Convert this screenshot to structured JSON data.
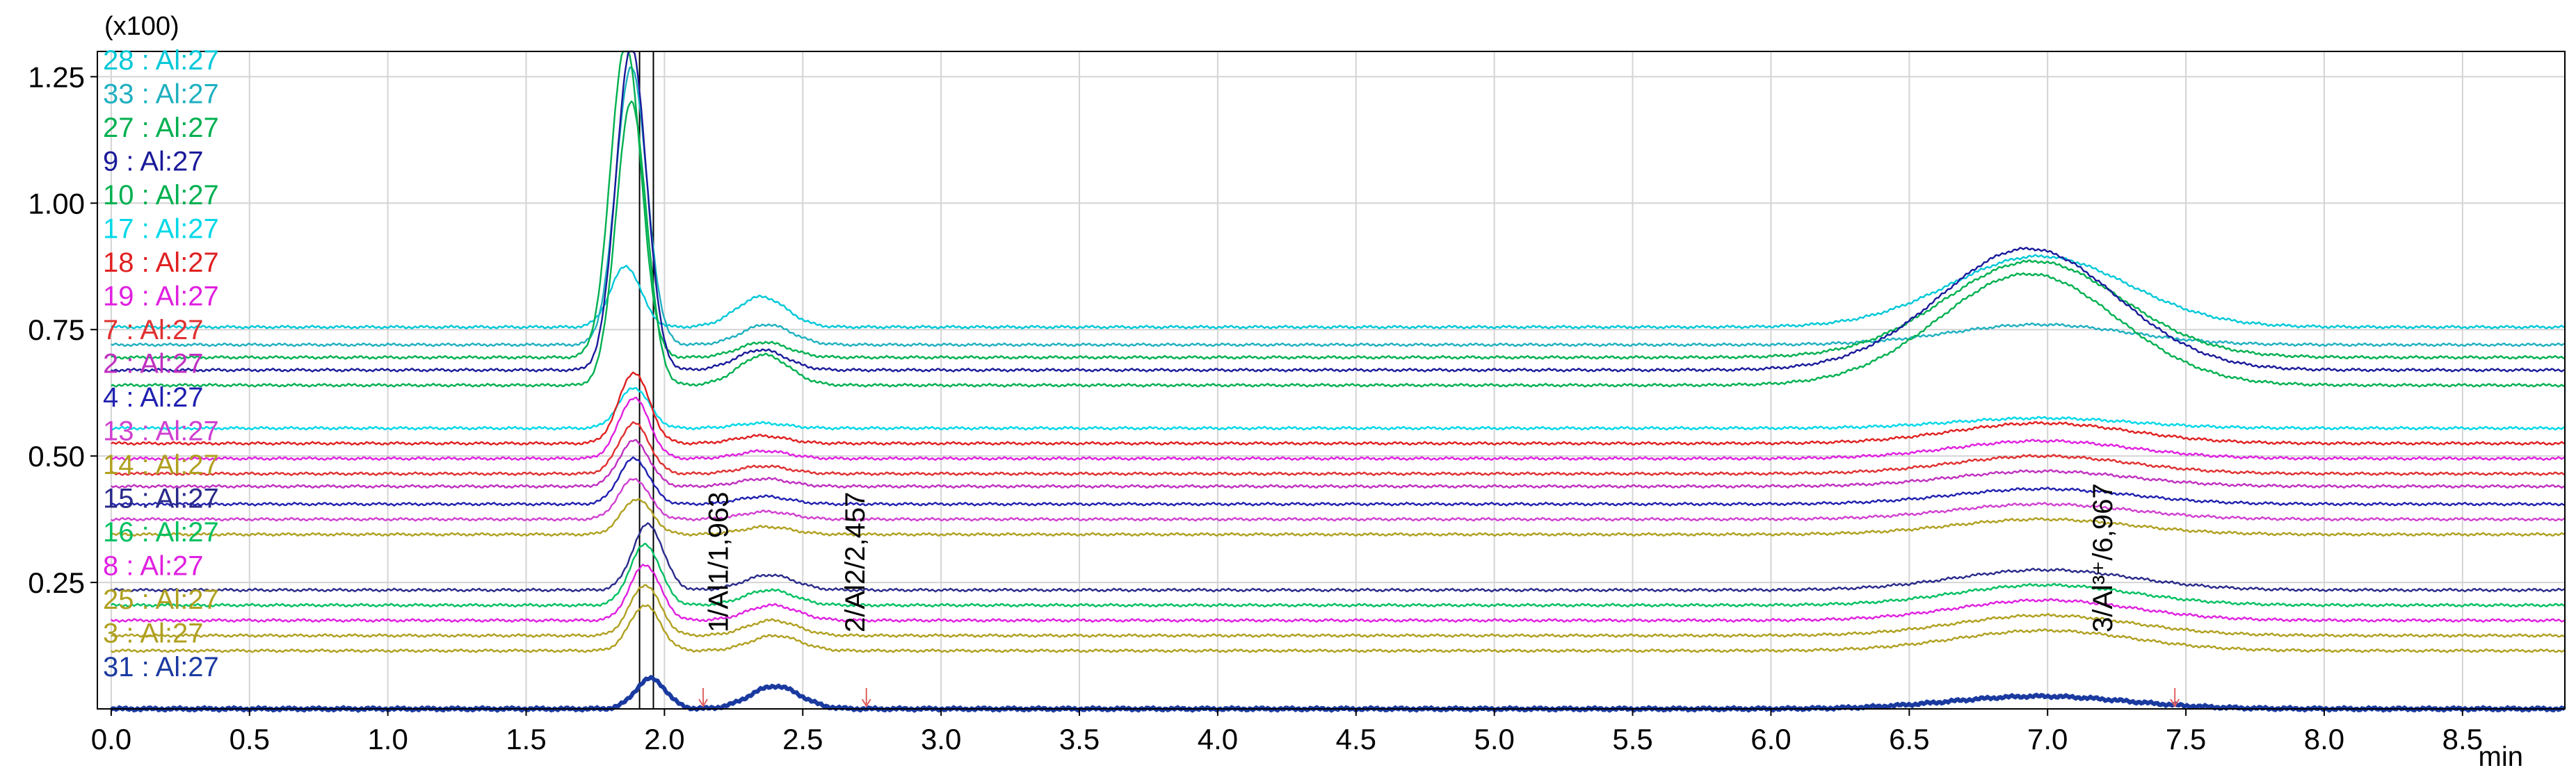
{
  "chart_data": {
    "type": "line",
    "title": "",
    "y_multiplier": "(x100)",
    "xlabel": "min",
    "ylabel": "",
    "xlim": [
      -0.05,
      8.87
    ],
    "ylim": [
      0.0,
      1.3
    ],
    "x_ticks": [
      0.0,
      0.5,
      1.0,
      1.5,
      2.0,
      2.5,
      3.0,
      3.5,
      4.0,
      4.5,
      5.0,
      5.5,
      6.0,
      6.5,
      7.0,
      7.5,
      8.0,
      8.5
    ],
    "x_tick_labels": [
      "0.0",
      "0.5",
      "1.0",
      "1.5",
      "2.0",
      "2.5",
      "3.0",
      "3.5",
      "4.0",
      "4.5",
      "5.0",
      "5.5",
      "6.0",
      "6.5",
      "7.0",
      "7.5",
      "8.0",
      "8.5"
    ],
    "y_ticks": [
      0.25,
      0.5,
      0.75,
      1.0,
      1.25
    ],
    "y_tick_labels": [
      "0.25",
      "0.50",
      "0.75",
      "1.00",
      "1.25"
    ],
    "grid": true,
    "legend_position": "left",
    "series": [
      {
        "name": "28 : Al:27",
        "color": "#00c8d8",
        "baseline": 0.755,
        "peaks": [
          [
            1.86,
            0.12
          ],
          [
            2.35,
            0.06
          ],
          [
            6.97,
            0.14
          ]
        ]
      },
      {
        "name": "33 : Al:27",
        "color": "#1fb0c0",
        "baseline": 0.72,
        "peaks": [
          [
            1.88,
            0.55
          ],
          [
            2.37,
            0.04
          ],
          [
            6.97,
            0.04
          ]
        ]
      },
      {
        "name": "27 : Al:27",
        "color": "#00b050",
        "baseline": 0.695,
        "peaks": [
          [
            1.86,
            0.62
          ],
          [
            2.36,
            0.03
          ],
          [
            6.95,
            0.19
          ]
        ]
      },
      {
        "name": "9 : Al:27",
        "color": "#1a1a9a",
        "baseline": 0.67,
        "peaks": [
          [
            1.88,
            0.64
          ],
          [
            2.35,
            0.04
          ],
          [
            6.93,
            0.24
          ]
        ]
      },
      {
        "name": "10 : Al:27",
        "color": "#00b050",
        "baseline": 0.64,
        "peaks": [
          [
            1.88,
            0.56
          ],
          [
            2.36,
            0.06
          ],
          [
            6.93,
            0.22
          ]
        ]
      },
      {
        "name": "17 : Al:27",
        "color": "#00d8e8",
        "baseline": 0.555,
        "peaks": [
          [
            1.89,
            0.08
          ],
          [
            2.35,
            0.01
          ],
          [
            6.98,
            0.02
          ]
        ]
      },
      {
        "name": "18 : Al:27",
        "color": "#e02020",
        "baseline": 0.525,
        "peaks": [
          [
            1.89,
            0.14
          ],
          [
            2.35,
            0.015
          ],
          [
            6.98,
            0.04
          ]
        ]
      },
      {
        "name": "19 : Al:27",
        "color": "#e020e0",
        "baseline": 0.495,
        "peaks": [
          [
            1.89,
            0.12
          ],
          [
            2.36,
            0.015
          ],
          [
            6.98,
            0.035
          ]
        ]
      },
      {
        "name": "7 : Al:27",
        "color": "#e03030",
        "baseline": 0.465,
        "peaks": [
          [
            1.89,
            0.1
          ],
          [
            2.36,
            0.015
          ],
          [
            6.98,
            0.035
          ]
        ]
      },
      {
        "name": "2 : Al:27",
        "color": "#c030c0",
        "baseline": 0.44,
        "peaks": [
          [
            1.89,
            0.09
          ],
          [
            2.36,
            0.015
          ],
          [
            6.98,
            0.03
          ]
        ]
      },
      {
        "name": "4 : Al:27",
        "color": "#2020b0",
        "baseline": 0.405,
        "peaks": [
          [
            1.89,
            0.09
          ],
          [
            2.36,
            0.015
          ],
          [
            6.98,
            0.03
          ]
        ]
      },
      {
        "name": "13 : Al:27",
        "color": "#d040d0",
        "baseline": 0.375,
        "peaks": [
          [
            1.89,
            0.08
          ],
          [
            2.37,
            0.015
          ],
          [
            6.98,
            0.03
          ]
        ]
      },
      {
        "name": "14 : Al:27",
        "color": "#b0a020",
        "baseline": 0.345,
        "peaks": [
          [
            1.9,
            0.07
          ],
          [
            2.37,
            0.015
          ],
          [
            6.98,
            0.03
          ]
        ]
      },
      {
        "name": "15 : Al:27",
        "color": "#2a2a8a",
        "baseline": 0.235,
        "peaks": [
          [
            1.94,
            0.13
          ],
          [
            2.38,
            0.03
          ],
          [
            6.99,
            0.04
          ]
        ]
      },
      {
        "name": "16 : Al:27",
        "color": "#00c060",
        "baseline": 0.205,
        "peaks": [
          [
            1.93,
            0.12
          ],
          [
            2.38,
            0.03
          ],
          [
            6.99,
            0.04
          ]
        ]
      },
      {
        "name": "8 : Al:27",
        "color": "#e020e0",
        "baseline": 0.175,
        "peaks": [
          [
            1.93,
            0.11
          ],
          [
            2.39,
            0.03
          ],
          [
            6.99,
            0.04
          ]
        ]
      },
      {
        "name": "25 : Al:27",
        "color": "#b0a020",
        "baseline": 0.145,
        "peaks": [
          [
            1.93,
            0.1
          ],
          [
            2.39,
            0.03
          ],
          [
            6.99,
            0.04
          ]
        ]
      },
      {
        "name": "3 : Al:27",
        "color": "#b0a020",
        "baseline": 0.115,
        "peaks": [
          [
            1.93,
            0.09
          ],
          [
            2.4,
            0.03
          ],
          [
            6.99,
            0.04
          ]
        ]
      },
      {
        "name": "31 : Al:27",
        "color": "#1a3aa0",
        "baseline": 0.0,
        "peaks": [
          [
            1.95,
            0.06
          ],
          [
            2.4,
            0.045
          ],
          [
            6.97,
            0.025
          ]
        ],
        "bold": true
      }
    ],
    "annotations": [
      {
        "text": "1/Al1/1,963",
        "x": 1.963
      },
      {
        "text": "2/Al2/2,457",
        "x": 2.457
      },
      {
        "text": "3/Al³⁺/6,967",
        "x": 6.967
      }
    ],
    "markers": [
      2.14,
      2.73,
      7.46
    ],
    "vertical_lines": [
      1.91,
      1.96
    ]
  }
}
